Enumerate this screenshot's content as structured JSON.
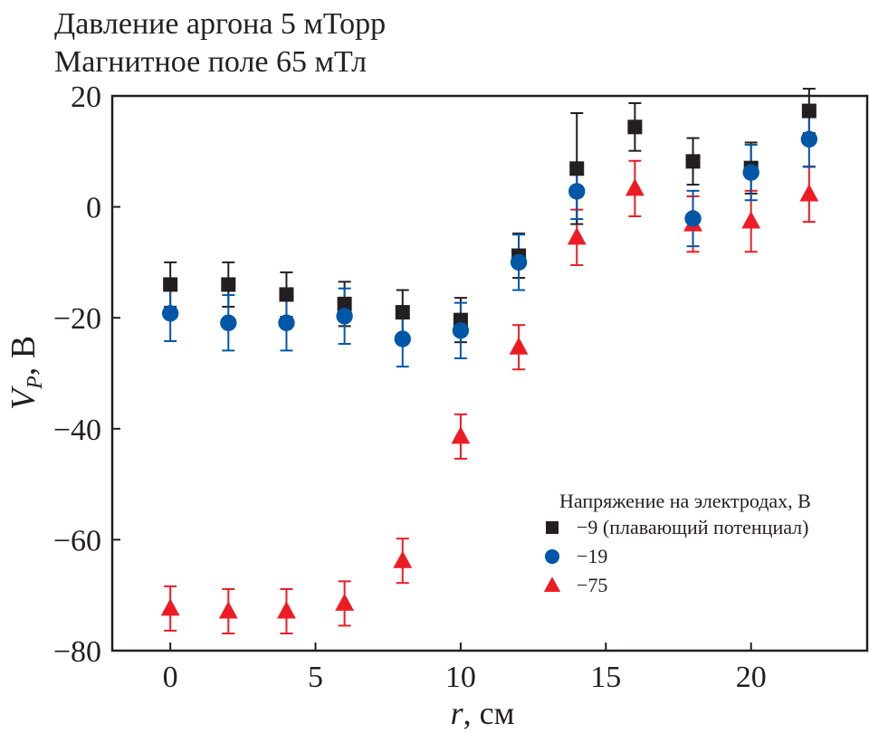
{
  "chart_data": {
    "type": "scatter",
    "title": [
      "Давление аргона 5 мТорр",
      "Магнитное поле 65 мТл"
    ],
    "xlabel_var": "r",
    "xlabel_unit": ", см",
    "ylabel_var": "V",
    "ylabel_sub": "P",
    "ylabel_unit": ", В",
    "xlim": [
      -2,
      24
    ],
    "ylim": [
      -80,
      20
    ],
    "xticks": [
      0,
      5,
      10,
      15,
      20
    ],
    "xtick_labels": [
      "0",
      "5",
      "10",
      "15",
      "20"
    ],
    "yticks": [
      -80,
      -60,
      -40,
      -20,
      0,
      20
    ],
    "ytick_labels": [
      "−80",
      "−60",
      "−40",
      "−20",
      "0",
      "20"
    ],
    "grid": false,
    "legend_title": "Напряжение на электродах, В",
    "legend_placement": "bottom-right",
    "series": [
      {
        "name": "−9 (плавающий потенциал)",
        "marker": "square",
        "color": "#231f20",
        "x": [
          0,
          2,
          4,
          6,
          8,
          10,
          12,
          14,
          16,
          18,
          20,
          22
        ],
        "y": [
          -14.0,
          -14.0,
          -15.8,
          -17.5,
          -19.0,
          -20.4,
          -8.8,
          6.9,
          14.4,
          8.2,
          7.0,
          17.3
        ],
        "err": [
          4,
          4,
          4,
          4,
          4,
          4,
          4,
          10,
          4.3,
          4.2,
          4.6,
          4
        ]
      },
      {
        "name": "−19",
        "marker": "circle",
        "color": "#0057a8",
        "x": [
          0,
          2,
          4,
          6,
          8,
          10,
          12,
          14,
          18,
          20,
          22
        ],
        "y": [
          -19.2,
          -20.9,
          -20.9,
          -19.7,
          -23.8,
          -22.3,
          -10.0,
          2.8,
          -2.1,
          6.2,
          12.2
        ],
        "err": [
          5,
          5,
          5,
          5,
          5,
          5,
          5,
          5,
          5,
          5,
          5
        ]
      },
      {
        "name": "−75",
        "marker": "triangle",
        "color": "#ed1c24",
        "x": [
          0,
          2,
          4,
          6,
          8,
          10,
          12,
          14,
          16,
          18,
          20,
          22
        ],
        "y": [
          -72.4,
          -72.9,
          -72.9,
          -71.5,
          -63.8,
          -41.4,
          -25.3,
          -5.5,
          3.3,
          -3.1,
          -2.6,
          2.3
        ],
        "err": [
          4,
          4,
          4,
          4,
          4,
          4,
          4,
          5,
          5,
          5,
          5.5,
          5
        ]
      }
    ]
  }
}
